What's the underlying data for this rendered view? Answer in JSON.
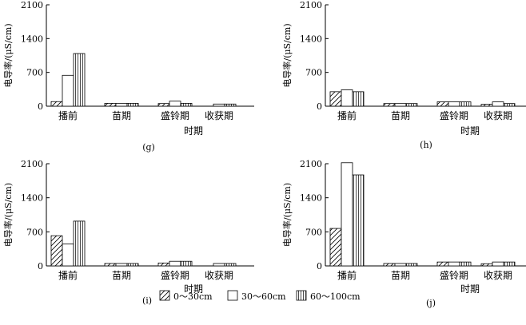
{
  "chart_data": [
    {
      "type": "bar",
      "panel_label": "(g)",
      "categories": [
        "播前",
        "苗期",
        "盛铃期",
        "收获期"
      ],
      "ylabel": "电导率/(μS/cm)",
      "xlabel": "时期",
      "ylim": [
        0,
        2100
      ],
      "yticks": [
        "0",
        "700",
        "1400",
        "2100"
      ],
      "series": [
        {
          "name": "0～30cm",
          "values": [
            95,
            60,
            55,
            0
          ]
        },
        {
          "name": "30～60cm",
          "values": [
            640,
            60,
            105,
            45
          ]
        },
        {
          "name": "60～100cm",
          "values": [
            1090,
            60,
            60,
            45
          ]
        }
      ]
    },
    {
      "type": "bar",
      "panel_label": "(h)",
      "categories": [
        "播前",
        "苗期",
        "盛铃期",
        "收获期"
      ],
      "ylabel": "电导率/(μS/cm)",
      "xlabel": "时期",
      "ylim": [
        0,
        2100
      ],
      "yticks": [
        "0",
        "700",
        "1400",
        "2100"
      ],
      "series": [
        {
          "name": "0～30cm",
          "values": [
            300,
            55,
            90,
            40
          ]
        },
        {
          "name": "30～60cm",
          "values": [
            340,
            55,
            90,
            90
          ]
        },
        {
          "name": "60～100cm",
          "values": [
            300,
            55,
            90,
            55
          ]
        }
      ]
    },
    {
      "type": "bar",
      "panel_label": "(i)",
      "categories": [
        "播前",
        "苗期",
        "盛铃期",
        "收获期"
      ],
      "ylabel": "电导率/(μS/cm)",
      "xlabel": "时期",
      "ylim": [
        0,
        2100
      ],
      "yticks": [
        "0",
        "700",
        "1400",
        "2100"
      ],
      "series": [
        {
          "name": "0～30cm",
          "values": [
            620,
            50,
            60,
            0
          ]
        },
        {
          "name": "30～60cm",
          "values": [
            450,
            50,
            95,
            50
          ]
        },
        {
          "name": "60～100cm",
          "values": [
            920,
            50,
            95,
            50
          ]
        }
      ]
    },
    {
      "type": "bar",
      "panel_label": "(j)",
      "categories": [
        "播前",
        "苗期",
        "盛铃期",
        "收获期"
      ],
      "ylabel": "电导率/(μS/cm)",
      "xlabel": "时期",
      "ylim": [
        0,
        2100
      ],
      "yticks": [
        "0",
        "700",
        "1400",
        "2100"
      ],
      "series": [
        {
          "name": "0～30cm",
          "values": [
            770,
            50,
            80,
            45
          ]
        },
        {
          "name": "30～60cm",
          "values": [
            2120,
            50,
            80,
            80
          ]
        },
        {
          "name": "60～100cm",
          "values": [
            1870,
            50,
            80,
            80
          ]
        }
      ]
    }
  ],
  "legend": {
    "items": [
      {
        "label": "0～30cm",
        "pattern": "diagonal"
      },
      {
        "label": "30～60cm",
        "pattern": "none"
      },
      {
        "label": "60～100cm",
        "pattern": "vertical"
      }
    ]
  }
}
